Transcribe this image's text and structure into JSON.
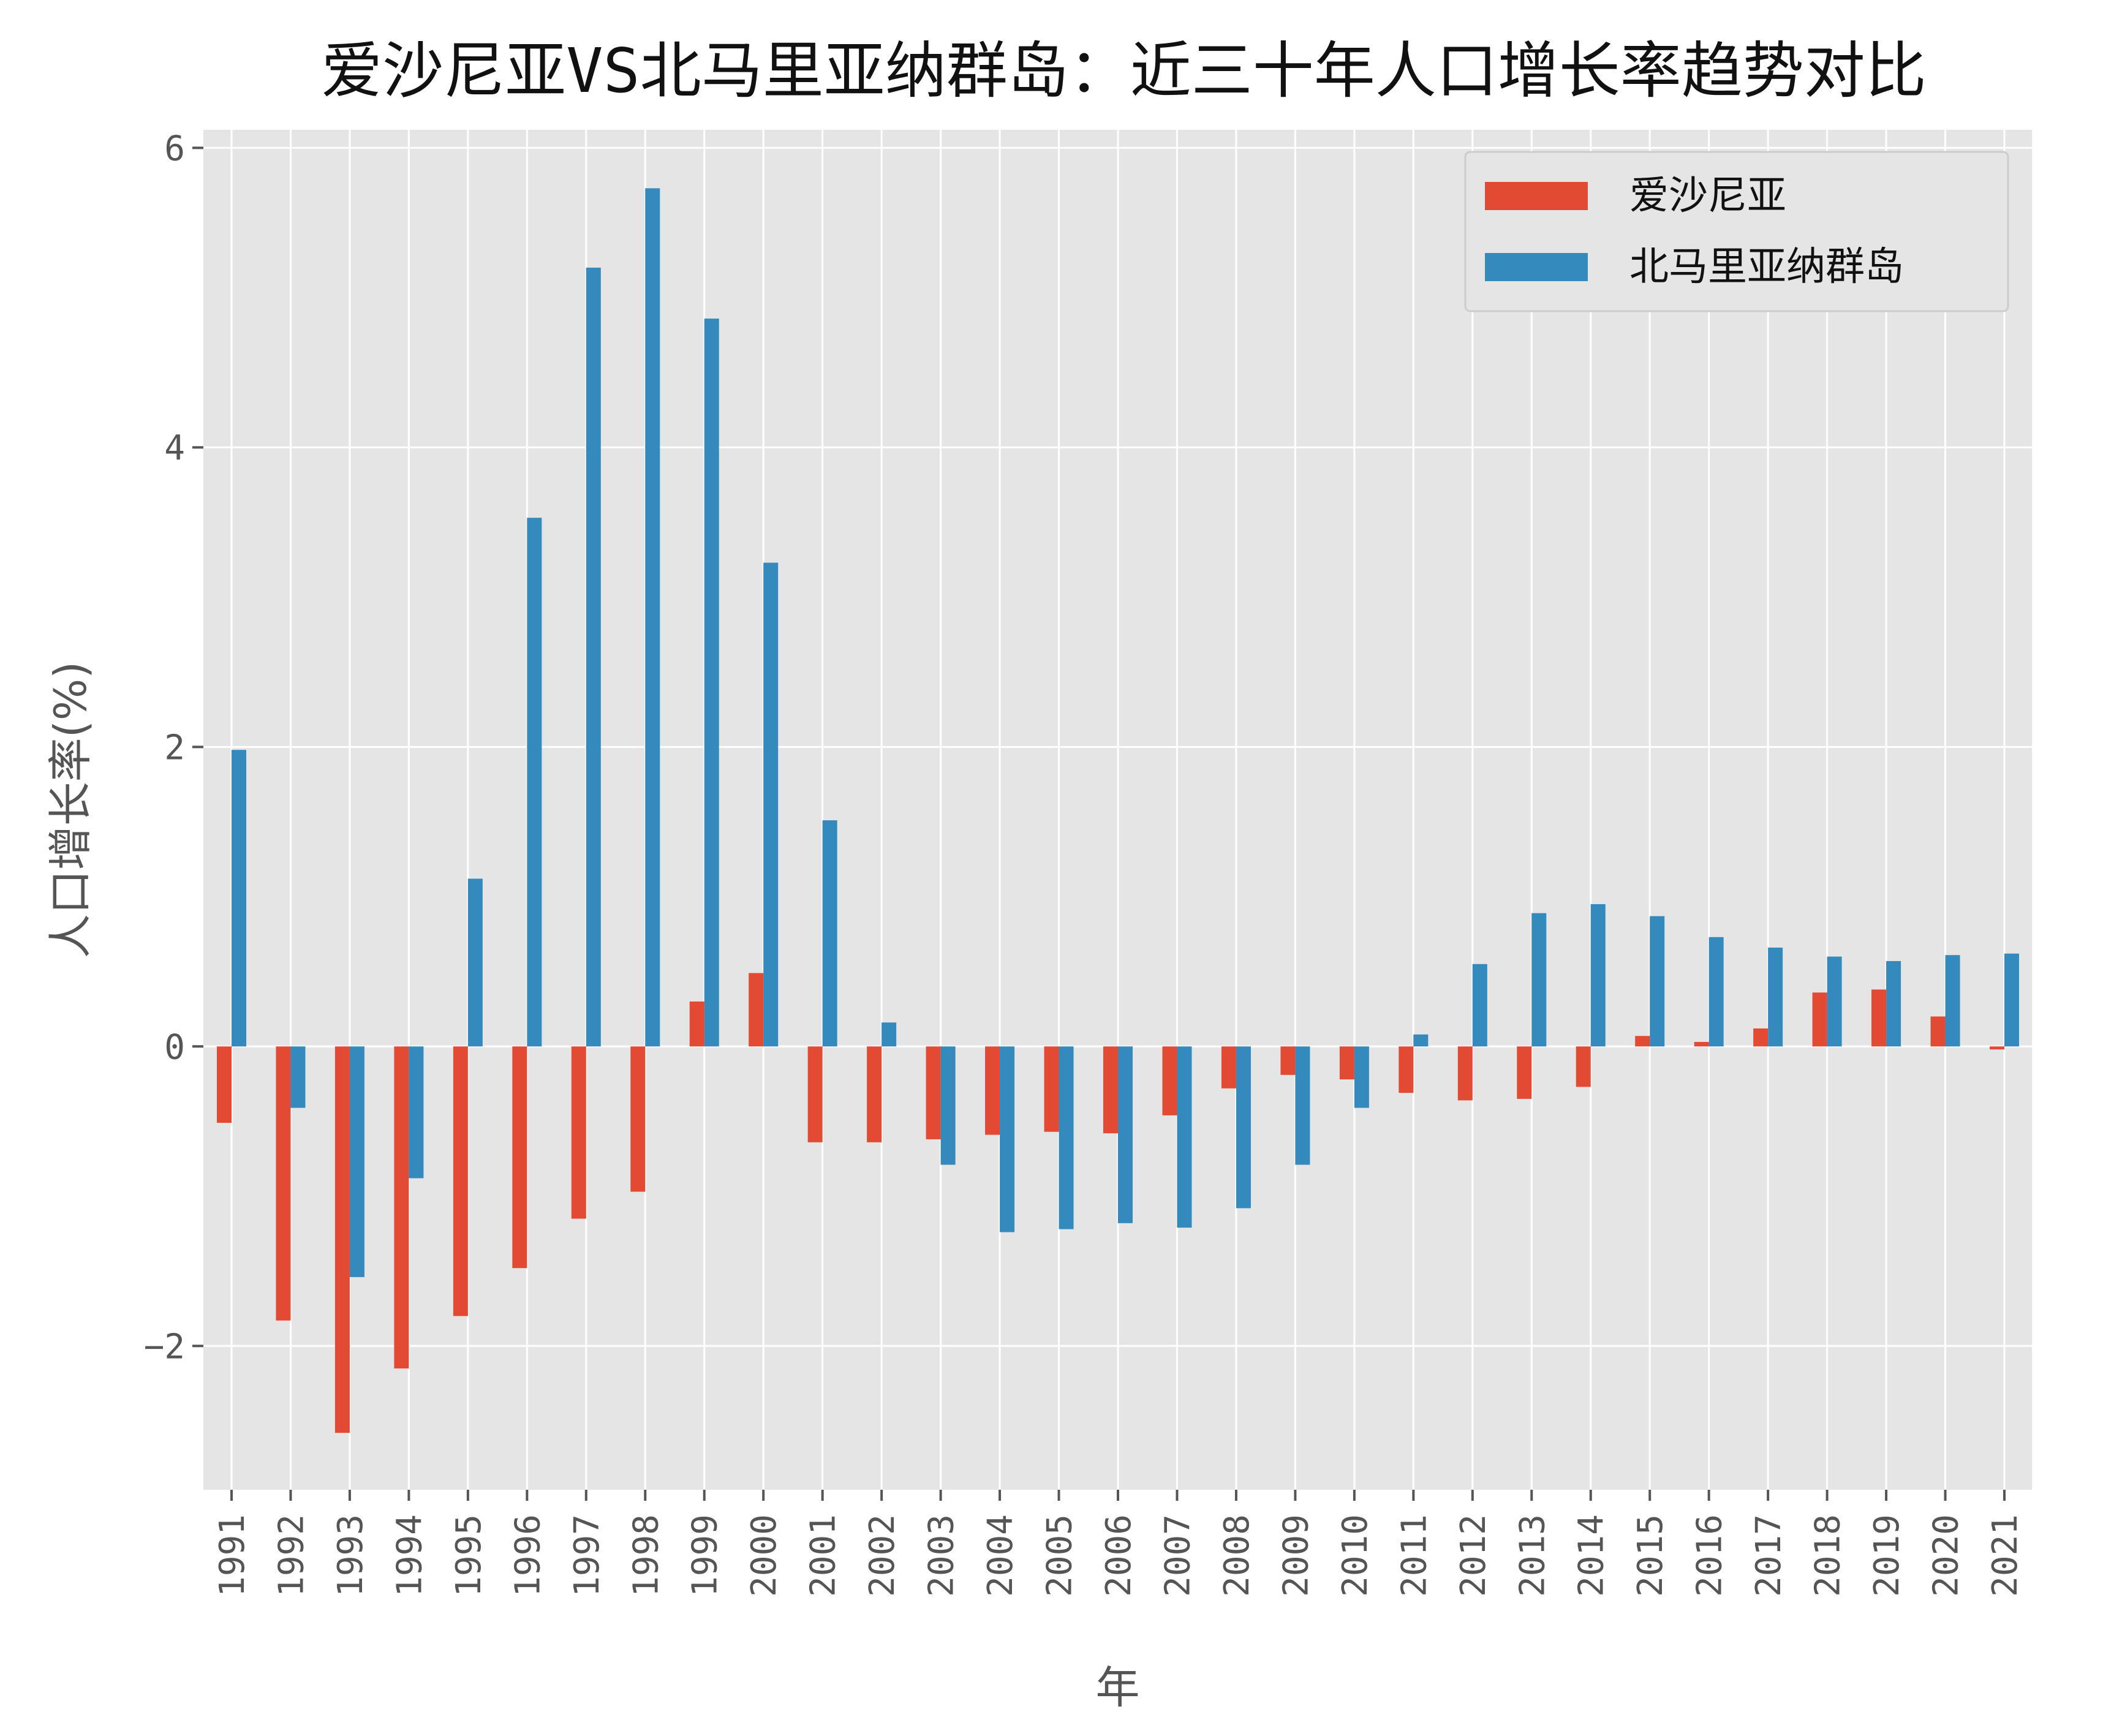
{
  "chart_data": {
    "type": "bar",
    "title": "爱沙尼亚VS北马里亚纳群岛：近三十年人口增长率趋势对比",
    "xlabel": "年",
    "ylabel": "人口增长率(%)",
    "categories": [
      "1991",
      "1992",
      "1993",
      "1994",
      "1995",
      "1996",
      "1997",
      "1998",
      "1999",
      "2000",
      "2001",
      "2002",
      "2003",
      "2004",
      "2005",
      "2006",
      "2007",
      "2008",
      "2009",
      "2010",
      "2011",
      "2012",
      "2013",
      "2014",
      "2015",
      "2016",
      "2017",
      "2018",
      "2019",
      "2020",
      "2021"
    ],
    "series": [
      {
        "name": "爱沙尼亚",
        "color": "#E24A33",
        "values": [
          -0.51,
          -1.83,
          -2.58,
          -2.15,
          -1.8,
          -1.48,
          -1.15,
          -0.97,
          0.3,
          0.49,
          -0.64,
          -0.64,
          -0.62,
          -0.59,
          -0.57,
          -0.58,
          -0.46,
          -0.28,
          -0.19,
          -0.22,
          -0.31,
          -0.36,
          -0.35,
          -0.27,
          0.07,
          0.03,
          0.12,
          0.36,
          0.38,
          0.2,
          -0.02
        ]
      },
      {
        "name": "北马里亚纳群岛",
        "color": "#348ABD",
        "values": [
          1.98,
          -0.41,
          -1.54,
          -0.88,
          1.12,
          3.53,
          5.2,
          5.73,
          4.86,
          3.23,
          1.51,
          0.16,
          -0.79,
          -1.24,
          -1.22,
          -1.18,
          -1.21,
          -1.08,
          -0.79,
          -0.41,
          0.08,
          0.55,
          0.89,
          0.95,
          0.87,
          0.73,
          0.66,
          0.6,
          0.57,
          0.61,
          0.62
        ]
      }
    ],
    "yticks": [
      "−2",
      "0",
      "2",
      "4",
      "6"
    ],
    "ylim": [
      -2.96,
      6.12
    ],
    "grid": true,
    "legend_position": "upper right",
    "background": "#E5E5E5"
  }
}
